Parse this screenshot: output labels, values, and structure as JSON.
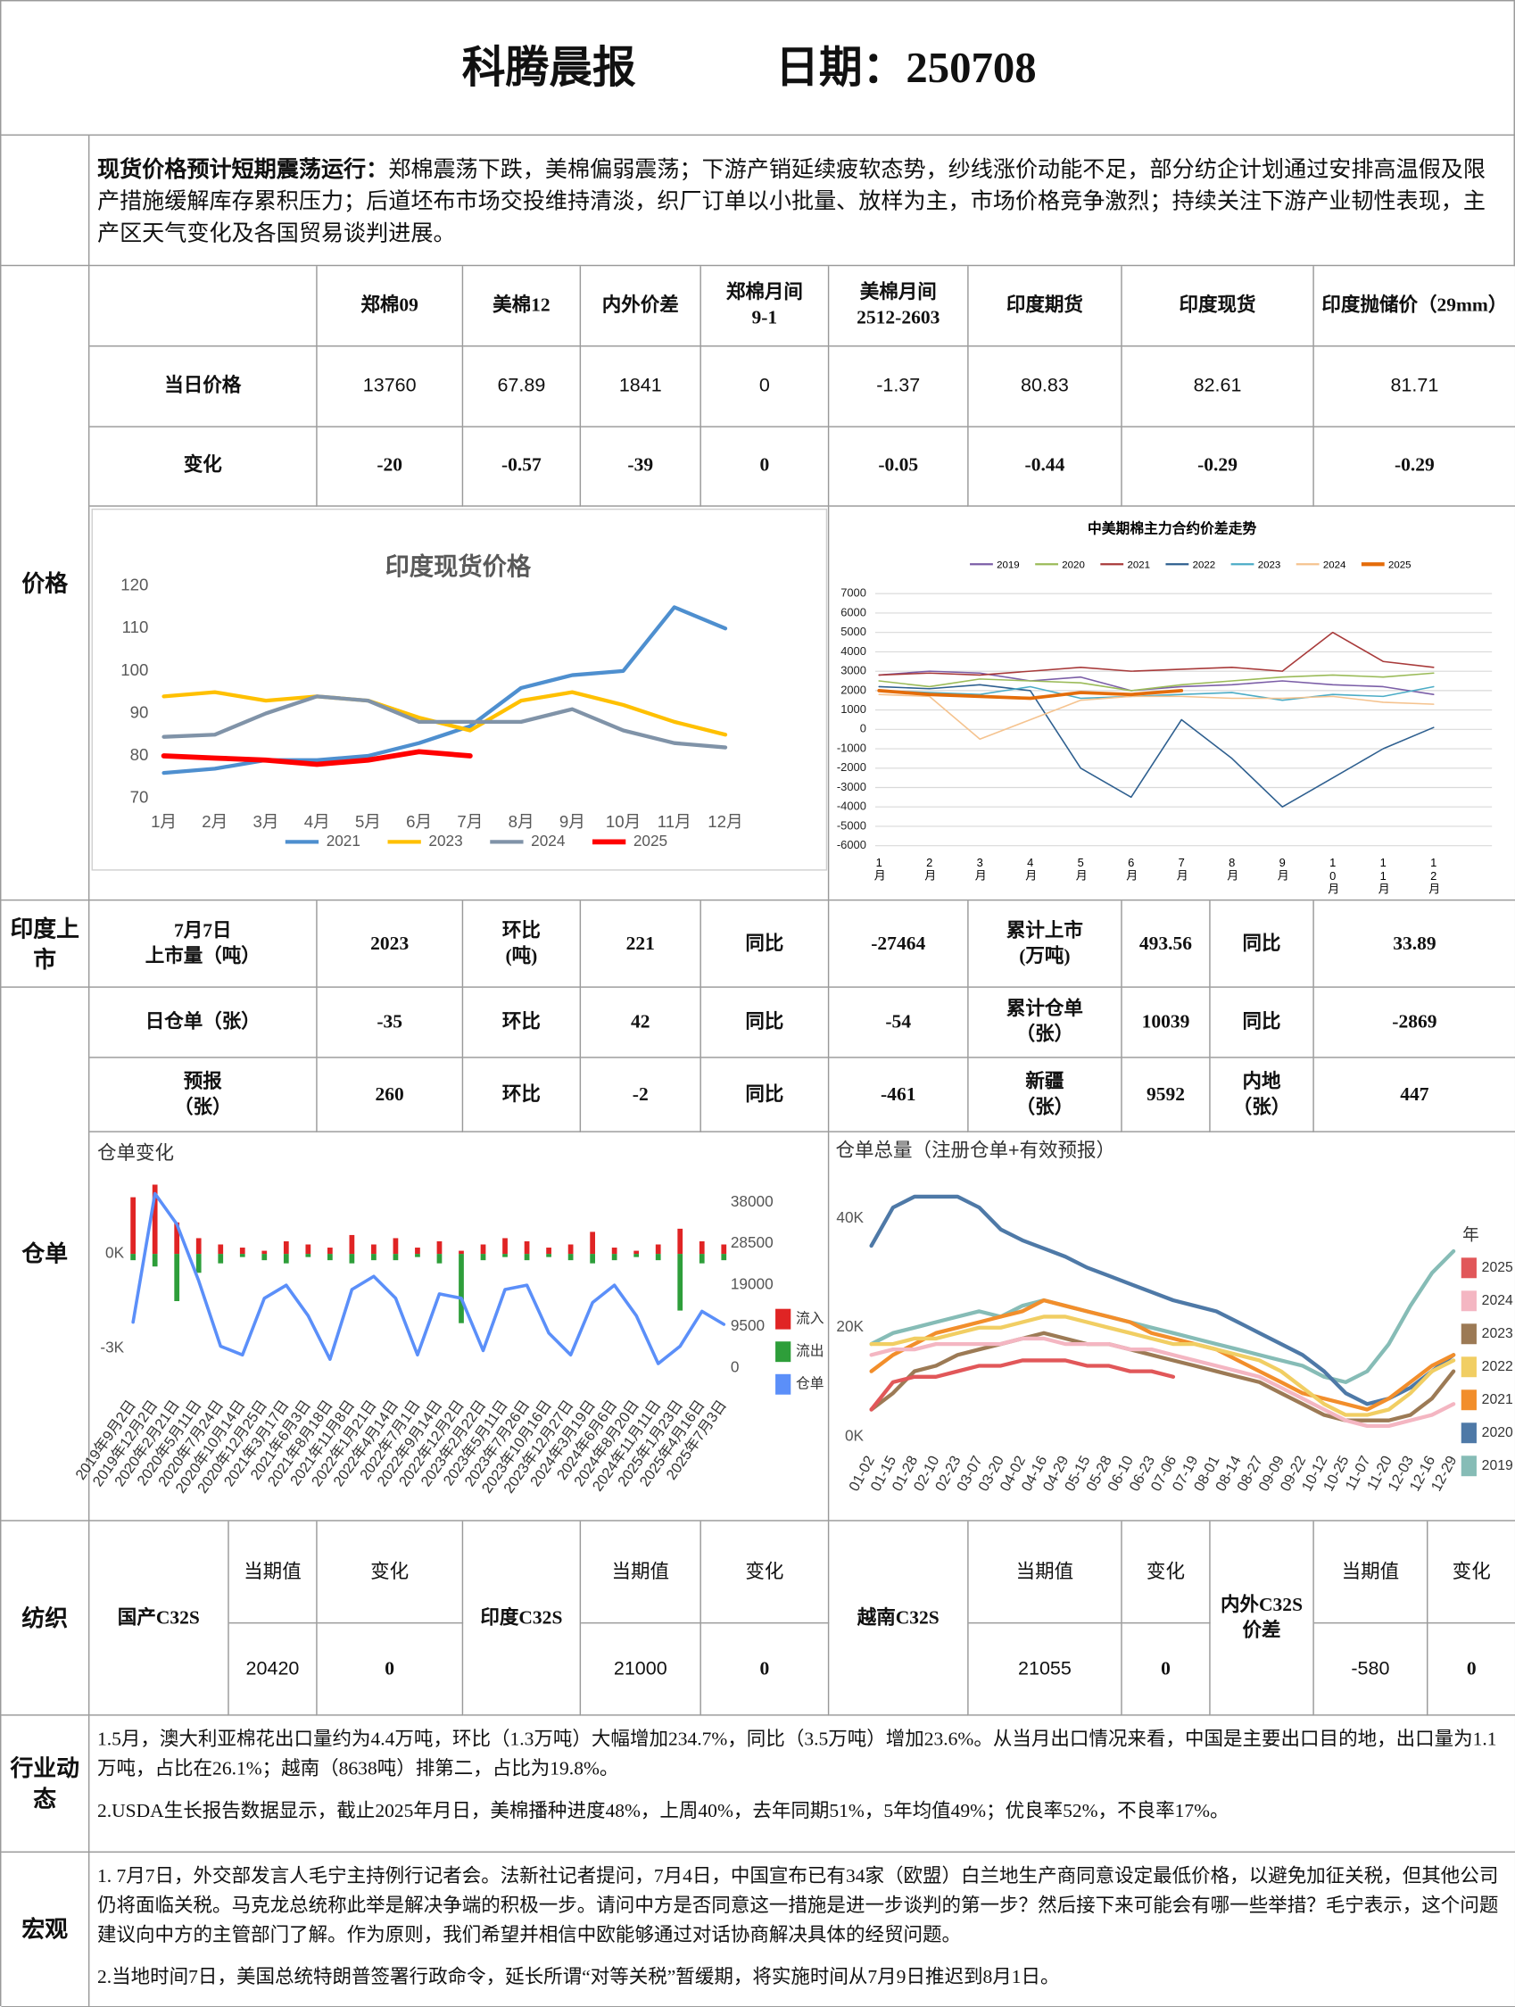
{
  "header": {
    "title": "科腾晨报",
    "date": "日期：250708"
  },
  "summary": {
    "lead": "现货价格预计短期震荡运行：",
    "text": "郑棉震荡下跌，美棉偏弱震荡；下游产销延续疲软态势，纱线涨价动能不足，部分纺企计划通过安排高温假及限产措施缓解库存累积压力；后道坯布市场交投维持清淡，织厂订单以小批量、放样为主，市场价格竞争激烈；持续关注下游产业韧性表现，主产区天气变化及各国贸易谈判进展。"
  },
  "sections": {
    "price": "价格",
    "listing": "印度上市",
    "warrant": "仓单",
    "yarn": "纺织",
    "industry": "行业动态",
    "macro": "宏观"
  },
  "price_table": {
    "headers": [
      "郑棉09",
      "美棉12",
      "内外价差",
      "郑棉月间\n9-1",
      "美棉月间\n2512-2603",
      "印度期货",
      "印度现货",
      "印度抛储价（29mm）"
    ],
    "rows": [
      {
        "label": "当日价格",
        "cells": [
          13760,
          67.89,
          1841,
          0,
          -1.37,
          80.83,
          82.61,
          81.71
        ]
      },
      {
        "label": "变化",
        "cells": [
          -20,
          -0.57,
          -39,
          0,
          -0.05,
          -0.44,
          -0.29,
          -0.29
        ]
      }
    ]
  },
  "listing": [
    "7月7日\n上市量（吨）",
    2023,
    "环比\n(吨)",
    221,
    "同比",
    -27464,
    "累计上市\n(万吨)",
    493.56,
    "同比",
    33.89
  ],
  "warrant": [
    [
      "日仓单（张）",
      -35,
      "环比",
      42,
      "同比",
      -54,
      "累计仓单\n（张）",
      10039,
      "同比",
      -2869
    ],
    [
      "预报\n（张）",
      260,
      "环比",
      -2,
      "同比",
      -461,
      "新疆\n（张）",
      9592,
      "内地\n（张）",
      447
    ]
  ],
  "yarn": {
    "headers": [
      "当期值",
      "变化"
    ],
    "items": [
      {
        "name": "国产C32S",
        "value": 20420,
        "change": 0
      },
      {
        "name": "印度C32S",
        "value": 21000,
        "change": 0
      },
      {
        "name": "越南C32S",
        "value": 21055,
        "change": 0
      },
      {
        "name": "内外C32S\n价差",
        "value": -580,
        "change": 0
      }
    ]
  },
  "industry": [
    "1.5月，澳大利亚棉花出口量约为4.4万吨，环比（1.3万吨）大幅增加234.7%，同比（3.5万吨）增加23.6%。从当月出口情况来看，中国是主要出口目的地，出口量为1.1万吨，占比在26.1%；越南（8638吨）排第二，占比为19.8%。",
    "2.USDA生长报告数据显示，截止2025年月日，美棉播种进度48%，上周40%，去年同期51%，5年均值49%；优良率52%，不良率17%。"
  ],
  "macro": [
    "1. 7月7日，外交部发言人毛宁主持例行记者会。法新社记者提问，7月4日，中国宣布已有34家（欧盟）白兰地生产商同意设定最低价格，以避免加征关税，但其他公司仍将面临关税。马克龙总统称此举是解决争端的积极一步。请问中方是否同意这一措施是进一步谈判的第一步？然后接下来可能会有哪一些举措？毛宁表示，这个问题建议向中方的主管部门了解。作为原则，我们希望并相信中欧能够通过对话协商解决具体的经贸问题。",
    "2.当地时间7日，美国总统特朗普签署行政命令，延长所谓“对等关税”暂缓期，将实施时间从7月9日推迟到8月1日。"
  ],
  "chart_data": [
    {
      "type": "line",
      "title": "印度现货价格",
      "categories": [
        "1月",
        "2月",
        "3月",
        "4月",
        "5月",
        "6月",
        "7月",
        "8月",
        "9月",
        "10月",
        "11月",
        "12月"
      ],
      "ylim": [
        70,
        120
      ],
      "yticks": [
        70,
        80,
        90,
        100,
        110,
        120
      ],
      "grid": false,
      "legend": "bottom",
      "series": [
        {
          "name": "2021",
          "color": "#4e8fcf",
          "values": [
            76,
            77,
            79,
            79,
            80,
            83,
            87,
            96,
            99,
            100,
            115,
            110
          ]
        },
        {
          "name": "2023",
          "color": "#ffc000",
          "values": [
            94,
            95,
            93,
            94,
            93,
            89,
            86,
            93,
            95,
            92,
            88,
            85
          ]
        },
        {
          "name": "2024",
          "color": "#8093a8",
          "values": [
            84.5,
            85,
            90,
            94,
            93,
            88,
            88,
            88,
            91,
            86,
            83,
            82
          ]
        },
        {
          "name": "2025",
          "color": "#ff0000",
          "values": [
            80,
            79.5,
            79,
            78,
            79,
            81,
            80,
            null,
            null,
            null,
            null,
            null
          ]
        }
      ]
    },
    {
      "type": "line",
      "title": "中美期棉主力合约价差走势",
      "categories": [
        "1月",
        "2月",
        "3月",
        "4月",
        "5月",
        "6月",
        "7月",
        "8月",
        "9月",
        "10月",
        "11月",
        "12月"
      ],
      "ylim": [
        -6000,
        7000
      ],
      "yticks": [
        -6000,
        -5000,
        -4000,
        -3000,
        -2000,
        -1000,
        0,
        1000,
        2000,
        3000,
        4000,
        5000,
        6000,
        7000
      ],
      "grid": true,
      "legend": "top",
      "series": [
        {
          "name": "2019",
          "color": "#7b5ea7",
          "values": [
            2800,
            3000,
            2900,
            2500,
            2700,
            2000,
            2200,
            2300,
            2500,
            2300,
            2200,
            1800
          ]
        },
        {
          "name": "2020",
          "color": "#9bbb59",
          "values": [
            2500,
            2200,
            2600,
            2500,
            2400,
            2000,
            2300,
            2500,
            2700,
            2800,
            2700,
            2900
          ]
        },
        {
          "name": "2021",
          "color": "#a83a3a",
          "values": [
            2800,
            2900,
            2800,
            3000,
            3200,
            3000,
            3100,
            3200,
            3000,
            5000,
            3500,
            3200
          ]
        },
        {
          "name": "2022",
          "color": "#2e5f8f",
          "values": [
            2200,
            2100,
            2300,
            2000,
            -2000,
            -3500,
            500,
            -1500,
            -4000,
            -2500,
            -1000,
            100
          ]
        },
        {
          "name": "2023",
          "color": "#4bacc6",
          "values": [
            2000,
            1900,
            1800,
            2200,
            1600,
            1700,
            1800,
            1900,
            1500,
            1800,
            1700,
            2200
          ]
        },
        {
          "name": "2024",
          "color": "#f5c38f",
          "values": [
            1800,
            1700,
            -500,
            500,
            1500,
            1700,
            1700,
            1600,
            1600,
            1700,
            1400,
            1300
          ]
        },
        {
          "name": "2025",
          "color": "#e46c0a",
          "values": [
            2000,
            1800,
            1700,
            1600,
            1900,
            1800,
            2000,
            null,
            null,
            null,
            null,
            null
          ]
        }
      ]
    },
    {
      "type": "combo",
      "title": "仓单变化",
      "categories": [
        "2019年9月2日",
        "2019年12月2日",
        "2020年2月21日",
        "2020年5月11日",
        "2020年7月24日",
        "2020年10月14日",
        "2020年12月25日",
        "2021年3月17日",
        "2021年6月3日",
        "2021年8月18日",
        "2021年11月8日",
        "2022年1月21日",
        "2022年4月14日",
        "2022年7月1日",
        "2022年9月14日",
        "2022年12月2日",
        "2023年2月22日",
        "2023年5月11日",
        "2023年7月26日",
        "2023年10月16日",
        "2023年12月27日",
        "2024年3月19日",
        "2024年6月6日",
        "2024年8月20日",
        "2024年11月11日",
        "2025年1月23日",
        "2025年4月16日",
        "2025年7月3日"
      ],
      "ylim": [
        -3900,
        2400
      ],
      "yticks": [
        {
          "value": 0,
          "label": "0K"
        },
        {
          "value": -3000,
          "label": "-3K"
        }
      ],
      "y2lim": [
        -2000,
        43500
      ],
      "y2ticks": [
        0,
        9500,
        19000,
        28500,
        38000
      ],
      "legend": "right",
      "series": [
        {
          "name": "流入",
          "color": "#e02424",
          "kind": "bar",
          "values": [
            1800,
            2200,
            1000,
            500,
            300,
            200,
            100,
            400,
            300,
            200,
            600,
            300,
            500,
            200,
            400,
            100,
            300,
            500,
            400,
            200,
            300,
            700,
            200,
            100,
            300,
            800,
            400,
            300
          ]
        },
        {
          "name": "流出",
          "color": "#2e9e3a",
          "kind": "bar",
          "values": [
            -200,
            -400,
            -1500,
            -600,
            -300,
            -100,
            -200,
            -300,
            -100,
            -200,
            -300,
            -200,
            -200,
            -100,
            -300,
            -2200,
            -200,
            -100,
            -200,
            -100,
            -200,
            -300,
            -200,
            -100,
            -200,
            -1800,
            -300,
            -200
          ]
        },
        {
          "name": "仓单",
          "color": "#5b8ff9",
          "kind": "line",
          "axis": "y2",
          "values": [
            10500,
            40000,
            33000,
            20000,
            5000,
            3000,
            16000,
            19000,
            12000,
            2000,
            18000,
            21000,
            16000,
            3000,
            17000,
            16000,
            4000,
            18000,
            19000,
            8000,
            3000,
            15000,
            19000,
            12000,
            1000,
            5000,
            13000,
            10000
          ]
        }
      ]
    },
    {
      "type": "line",
      "title": "仓单总量（注册仓单+有效预报）",
      "categories": [
        "01-02",
        "01-15",
        "01-28",
        "02-10",
        "02-23",
        "03-07",
        "03-20",
        "04-02",
        "04-16",
        "04-29",
        "05-15",
        "05-28",
        "06-10",
        "06-23",
        "07-06",
        "07-19",
        "08-01",
        "08-14",
        "08-27",
        "09-09",
        "09-22",
        "10-12",
        "10-25",
        "11-07",
        "11-20",
        "12-03",
        "12-16",
        "12-29"
      ],
      "ylim": [
        0,
        45000
      ],
      "yticks": [
        {
          "value": 0,
          "label": "0K"
        },
        {
          "value": 20000,
          "label": "20K"
        },
        {
          "value": 40000,
          "label": "40K"
        }
      ],
      "legend": "right",
      "legend_title": "年",
      "series": [
        {
          "name": "2025",
          "color": "#e15759",
          "values": [
            5000,
            10000,
            11000,
            11000,
            12000,
            13000,
            13000,
            14000,
            14000,
            14000,
            13000,
            13000,
            12000,
            12000,
            11000,
            null,
            null,
            null,
            null,
            null,
            null,
            null,
            null,
            null,
            null,
            null,
            null,
            null
          ]
        },
        {
          "name": "2024",
          "color": "#f4b6c2",
          "values": [
            15000,
            16000,
            16000,
            17000,
            17000,
            17000,
            17000,
            18000,
            18000,
            17000,
            17000,
            17000,
            16000,
            16000,
            15000,
            14000,
            13000,
            12000,
            11000,
            9000,
            7000,
            5000,
            3000,
            2000,
            2000,
            3000,
            4000,
            6000
          ]
        },
        {
          "name": "2023",
          "color": "#9c7a55",
          "values": [
            5000,
            8000,
            12000,
            13000,
            15000,
            16000,
            17000,
            18000,
            19000,
            18000,
            17000,
            17000,
            16000,
            15000,
            14000,
            13000,
            12000,
            11000,
            10000,
            8000,
            6000,
            4000,
            3000,
            3000,
            3000,
            4000,
            7000,
            12000
          ]
        },
        {
          "name": "2022",
          "color": "#f1ce63",
          "values": [
            17000,
            17000,
            18000,
            18000,
            19000,
            20000,
            20000,
            21000,
            22000,
            22000,
            21000,
            20000,
            19000,
            18000,
            17000,
            17000,
            16000,
            15000,
            14000,
            12000,
            9000,
            6000,
            4000,
            4000,
            5000,
            8000,
            12000,
            14000
          ]
        },
        {
          "name": "2021",
          "color": "#f28e2b",
          "values": [
            12000,
            15000,
            17000,
            19000,
            20000,
            21000,
            22000,
            23000,
            25000,
            24000,
            23000,
            22000,
            21000,
            19000,
            18000,
            17000,
            16000,
            14000,
            12000,
            10000,
            8000,
            7000,
            6000,
            5000,
            7000,
            10000,
            13000,
            15000
          ]
        },
        {
          "name": "2020",
          "color": "#4e79a7",
          "values": [
            35000,
            42000,
            44000,
            44000,
            44000,
            42000,
            38000,
            36000,
            34500,
            33000,
            31000,
            29500,
            28000,
            26500,
            25000,
            24000,
            23000,
            21000,
            19000,
            17000,
            15000,
            12000,
            8000,
            6000,
            7000,
            9000,
            12000,
            15000
          ]
        },
        {
          "name": "2019",
          "color": "#86bcb6",
          "values": [
            17000,
            19000,
            20000,
            21000,
            22000,
            23000,
            22000,
            24000,
            25000,
            24000,
            23000,
            22000,
            21000,
            20000,
            19000,
            18000,
            17000,
            16000,
            15000,
            14000,
            13000,
            11000,
            10000,
            12000,
            17000,
            24000,
            30000,
            34000
          ]
        }
      ]
    }
  ]
}
